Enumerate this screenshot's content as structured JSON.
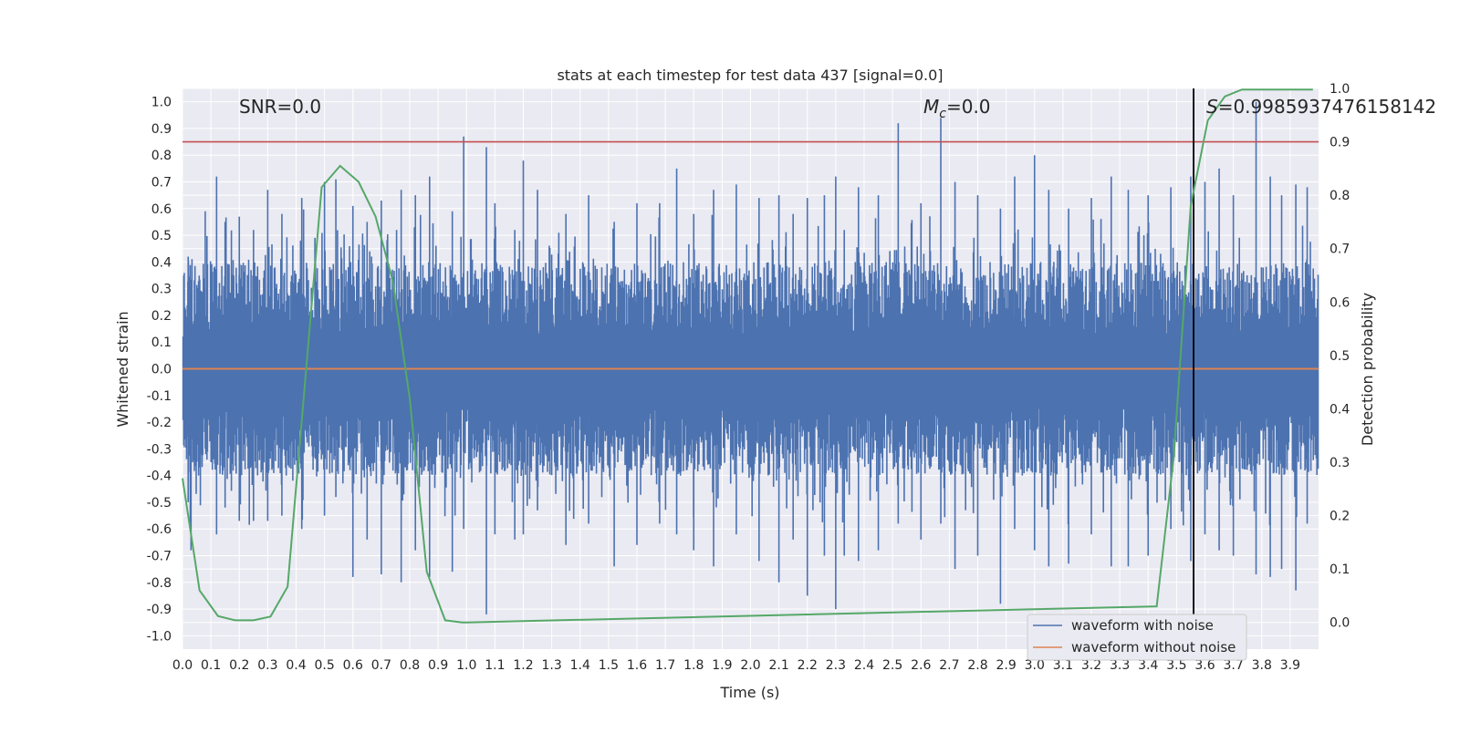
{
  "chart_data": {
    "type": "line",
    "title": "stats at each timestep for test data 437 [signal=0.0]",
    "xlabel": "Time (s)",
    "ylabel_left": "Whitened strain",
    "ylabel_right": "Detection probability",
    "xlim": [
      0.0,
      4.0
    ],
    "ylim_left": [
      -1.05,
      1.05
    ],
    "ylim_right": [
      -0.05,
      1.0
    ],
    "x_ticks": [
      "0.0",
      "0.1",
      "0.2",
      "0.3",
      "0.4",
      "0.5",
      "0.6",
      "0.7",
      "0.8",
      "0.9",
      "1.0",
      "1.1",
      "1.2",
      "1.3",
      "1.4",
      "1.5",
      "1.6",
      "1.7",
      "1.8",
      "1.9",
      "2.0",
      "2.1",
      "2.2",
      "2.3",
      "2.4",
      "2.5",
      "2.6",
      "2.7",
      "2.8",
      "2.9",
      "3.0",
      "3.1",
      "3.2",
      "3.3",
      "3.4",
      "3.5",
      "3.6",
      "3.7",
      "3.8",
      "3.9"
    ],
    "y_ticks_left": [
      "-1.0",
      "-0.9",
      "-0.8",
      "-0.7",
      "-0.6",
      "-0.5",
      "-0.4",
      "-0.3",
      "-0.2",
      "-0.1",
      "0.0",
      "0.1",
      "0.2",
      "0.3",
      "0.4",
      "0.5",
      "0.6",
      "0.7",
      "0.8",
      "0.9",
      "1.0"
    ],
    "y_ticks_right": [
      "0.0",
      "0.1",
      "0.2",
      "0.3",
      "0.4",
      "0.5",
      "0.6",
      "0.7",
      "0.8",
      "0.9",
      "1.0"
    ],
    "annotations": {
      "snr": "SNR=0.0",
      "mc_symbol": "M",
      "mc_sub": "c",
      "mc_value": "=0.0",
      "s_symbol": "S",
      "s_value": "=0.9985937476158142"
    },
    "series": [
      {
        "name": "waveform with noise",
        "color": "#4c72b0",
        "axis": "left",
        "spikes": [
          [
            0.02,
            0.42,
            -0.5
          ],
          [
            0.03,
            0.12,
            -0.68
          ],
          [
            0.08,
            0.59,
            -0.3
          ],
          [
            0.12,
            0.72,
            -0.62
          ],
          [
            0.15,
            0.55,
            -0.52
          ],
          [
            0.2,
            0.57,
            -0.57
          ],
          [
            0.25,
            0.52,
            -0.57
          ],
          [
            0.3,
            0.67,
            -0.57
          ],
          [
            0.35,
            0.58,
            -0.55
          ],
          [
            0.42,
            0.64,
            -0.6
          ],
          [
            0.5,
            0.7,
            -0.55
          ],
          [
            0.54,
            0.71,
            -0.48
          ],
          [
            0.6,
            0.61,
            -0.78
          ],
          [
            0.65,
            0.55,
            -0.64
          ],
          [
            0.7,
            0.63,
            -0.77
          ],
          [
            0.77,
            0.67,
            -0.8
          ],
          [
            0.82,
            0.65,
            -0.68
          ],
          [
            0.87,
            0.72,
            -0.78
          ],
          [
            0.95,
            0.59,
            -0.76
          ],
          [
            0.99,
            0.87,
            -0.6
          ],
          [
            1.07,
            0.83,
            -0.92
          ],
          [
            1.1,
            0.62,
            -0.62
          ],
          [
            1.17,
            0.52,
            -0.64
          ],
          [
            1.2,
            0.78,
            -0.62
          ],
          [
            1.25,
            0.67,
            -0.53
          ],
          [
            1.35,
            0.58,
            -0.66
          ],
          [
            1.43,
            0.65,
            -0.58
          ],
          [
            1.52,
            0.55,
            -0.74
          ],
          [
            1.6,
            0.62,
            -0.66
          ],
          [
            1.68,
            0.62,
            -0.58
          ],
          [
            1.74,
            0.75,
            -0.62
          ],
          [
            1.8,
            0.58,
            -0.68
          ],
          [
            1.87,
            0.67,
            -0.74
          ],
          [
            1.95,
            0.69,
            -0.62
          ],
          [
            2.03,
            0.64,
            -0.72
          ],
          [
            2.1,
            0.65,
            -0.8
          ],
          [
            2.15,
            0.58,
            -0.64
          ],
          [
            2.2,
            0.64,
            -0.85
          ],
          [
            2.26,
            0.65,
            -0.7
          ],
          [
            2.3,
            0.72,
            -0.9
          ],
          [
            2.33,
            0.52,
            -0.7
          ],
          [
            2.38,
            0.68,
            -0.72
          ],
          [
            2.45,
            0.65,
            -0.68
          ],
          [
            2.52,
            0.92,
            -0.58
          ],
          [
            2.6,
            0.62,
            -0.64
          ],
          [
            2.67,
            0.94,
            -0.58
          ],
          [
            2.72,
            0.7,
            -0.75
          ],
          [
            2.8,
            0.65,
            -0.7
          ],
          [
            2.88,
            0.6,
            -0.88
          ],
          [
            2.93,
            0.72,
            -0.6
          ],
          [
            3.0,
            0.8,
            -0.68
          ],
          [
            3.05,
            0.67,
            -0.74
          ],
          [
            3.12,
            0.6,
            -0.73
          ],
          [
            3.2,
            0.64,
            -0.62
          ],
          [
            3.27,
            0.72,
            -0.74
          ],
          [
            3.33,
            0.67,
            -0.74
          ],
          [
            3.4,
            0.65,
            -0.7
          ],
          [
            3.48,
            0.68,
            -0.6
          ],
          [
            3.55,
            0.72,
            -0.72
          ],
          [
            3.6,
            0.7,
            -0.62
          ],
          [
            3.65,
            0.75,
            -0.68
          ],
          [
            3.7,
            0.65,
            -0.7
          ],
          [
            3.78,
            1.0,
            -0.77
          ],
          [
            3.83,
            0.72,
            -0.78
          ],
          [
            3.87,
            0.65,
            -0.75
          ],
          [
            3.92,
            0.69,
            -0.83
          ],
          [
            3.96,
            0.68,
            -0.58
          ]
        ]
      },
      {
        "name": "waveform without noise",
        "color": "#dd8452",
        "axis": "left",
        "x": [
          0.0,
          4.0
        ],
        "y": [
          0.0,
          0.0
        ]
      },
      {
        "color": "#55a868",
        "axis": "right",
        "x": [
          0.0,
          0.06,
          0.125,
          0.185,
          0.25,
          0.31,
          0.37,
          0.43,
          0.49,
          0.555,
          0.62,
          0.68,
          0.74,
          0.8,
          0.86,
          0.925,
          0.985,
          1.0,
          3.43,
          3.49,
          3.55,
          3.61,
          3.67,
          3.73,
          3.79,
          3.85,
          3.92,
          3.98
        ],
        "y": [
          0.27,
          0.06,
          0.012,
          0.004,
          0.004,
          0.011,
          0.067,
          0.44,
          0.815,
          0.855,
          0.825,
          0.76,
          0.64,
          0.42,
          0.095,
          0.004,
          0.0,
          0.0,
          0.03,
          0.31,
          0.78,
          0.94,
          0.985,
          0.998,
          0.998,
          0.998,
          0.998,
          0.998
        ]
      }
    ],
    "reference_lines": [
      {
        "axis": "right",
        "y": 0.9,
        "color": "#c44e52"
      },
      {
        "axis": "x",
        "x": 3.56,
        "color": "#000000"
      }
    ],
    "grid": true,
    "background": "#eaeaf2",
    "legend_position": "lower-right"
  }
}
